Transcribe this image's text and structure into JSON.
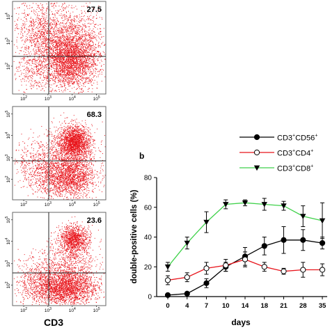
{
  "chart_data": [
    {
      "type": "scatter",
      "panel": "flow-cytometry-1",
      "quadrant_value": "27.5",
      "x_ticks": [
        "10^2",
        "10^3",
        "10^4",
        "10^5"
      ],
      "y_ticks": [
        "10^2",
        "10^3",
        "10^4"
      ],
      "color": "#e8141b"
    },
    {
      "type": "scatter",
      "panel": "flow-cytometry-2",
      "quadrant_value": "68.3",
      "x_ticks": [
        "10^2",
        "10^3",
        "10^4",
        "10^5"
      ],
      "y_ticks": [
        "10^2",
        "10^3",
        "10^4",
        "10^5"
      ],
      "color": "#e8141b"
    },
    {
      "type": "scatter",
      "panel": "flow-cytometry-3",
      "quadrant_value": "23.6",
      "x_ticks": [
        "10^2",
        "10^3",
        "10^4",
        "10^5"
      ],
      "y_ticks": [
        "10^2",
        "10^3",
        "10^4",
        "10^5"
      ],
      "xlabel": "CD3",
      "color": "#e8141b"
    },
    {
      "type": "line",
      "panel_label": "b",
      "xlabel": "days",
      "ylabel": "double-positive cells (%)",
      "categories": [
        "0",
        "4",
        "7",
        "10",
        "14",
        "18",
        "21",
        "28",
        "35"
      ],
      "ylim": [
        0,
        80
      ],
      "y_ticks": [
        0,
        20,
        40,
        60,
        80
      ],
      "legend_position": "top-right",
      "series": [
        {
          "name": "CD3+CD56+",
          "name_parts": [
            "CD3",
            "+",
            "CD56",
            "+"
          ],
          "marker": "filled-circle",
          "line_color": "#000000",
          "values": [
            1,
            2,
            9,
            20,
            27,
            34,
            38,
            38,
            36
          ],
          "errors": [
            1,
            1,
            3,
            3,
            6,
            6,
            9,
            7,
            4
          ]
        },
        {
          "name": "CD3+CD4+",
          "name_parts": [
            "CD3",
            "+",
            "CD4",
            "+"
          ],
          "marker": "open-circle",
          "line_color": "#e8141b",
          "values": [
            11,
            13,
            19,
            21,
            25,
            20,
            17,
            18,
            18
          ],
          "errors": [
            3,
            3,
            4,
            4,
            5,
            3,
            2,
            5,
            4
          ]
        },
        {
          "name": "CD3+CD8+",
          "name_parts": [
            "CD3",
            "+",
            "CD8",
            "+"
          ],
          "marker": "filled-triangle-down",
          "line_color": "#3fd14a",
          "values": [
            20,
            36,
            50,
            62,
            63,
            62,
            61,
            54,
            51
          ],
          "errors": [
            3,
            4,
            7,
            3,
            2,
            4,
            3,
            7,
            12
          ]
        }
      ]
    }
  ]
}
